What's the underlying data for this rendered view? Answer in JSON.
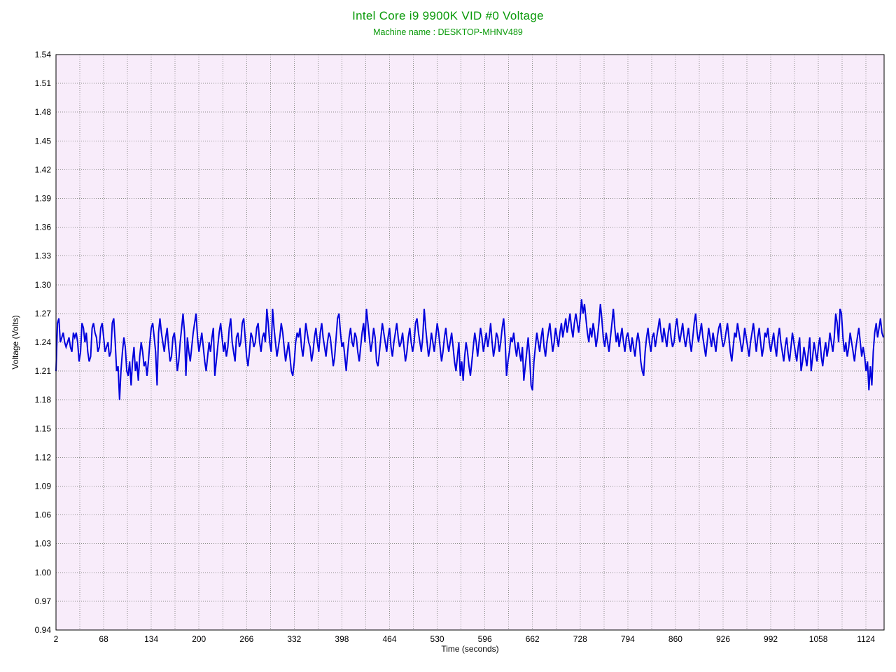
{
  "header": {
    "title": "Intel Core i9 9900K VID #0 Voltage",
    "subtitle": "Machine name : DESKTOP-MHNV489"
  },
  "colors": {
    "title_green": "#0a9a0a",
    "line_blue": "#0000dd",
    "plot_bg": "#f8ecfa",
    "grid": "#8c8c8c",
    "border": "#000000",
    "text": "#000000",
    "page_bg": "#ffffff"
  },
  "chart_data": {
    "type": "line",
    "title": "Intel Core i9 9900K VID #0 Voltage",
    "subtitle": "Machine name : DESKTOP-MHNV489",
    "xlabel": "Time (seconds)",
    "ylabel": "Voltage (Volts)",
    "xlim": [
      2,
      1149
    ],
    "ylim": [
      0.94,
      1.54
    ],
    "grid": "dotted gray; horizontal every 0.03 V, vertical every 33 s",
    "legend": "none",
    "x_ticks": [
      2,
      68,
      134,
      200,
      266,
      332,
      398,
      464,
      530,
      596,
      662,
      728,
      794,
      860,
      926,
      992,
      1058,
      1124
    ],
    "y_ticks": [
      "0.94",
      "0.97",
      "1.00",
      "1.03",
      "1.06",
      "1.09",
      "1.12",
      "1.15",
      "1.18",
      "1.21",
      "1.24",
      "1.27",
      "1.30",
      "1.33",
      "1.36",
      "1.39",
      "1.42",
      "1.45",
      "1.48",
      "1.51",
      "1.54"
    ],
    "x_gridlines": [
      35,
      68,
      101,
      134,
      167,
      200,
      233,
      266,
      299,
      332,
      365,
      398,
      431,
      464,
      497,
      530,
      563,
      596,
      629,
      662,
      695,
      728,
      761,
      794,
      827,
      860,
      893,
      926,
      959,
      992,
      1025,
      1058,
      1091,
      1124
    ],
    "series": [
      {
        "name": "VID #0 Voltage",
        "color": "#0000dd",
        "x_start": 2,
        "x_step": 2,
        "values": [
          1.21,
          1.26,
          1.265,
          1.24,
          1.245,
          1.25,
          1.24,
          1.235,
          1.24,
          1.245,
          1.235,
          1.23,
          1.25,
          1.245,
          1.25,
          1.24,
          1.22,
          1.23,
          1.26,
          1.255,
          1.24,
          1.25,
          1.23,
          1.22,
          1.225,
          1.255,
          1.26,
          1.25,
          1.245,
          1.23,
          1.235,
          1.255,
          1.26,
          1.245,
          1.23,
          1.235,
          1.24,
          1.225,
          1.23,
          1.26,
          1.265,
          1.24,
          1.21,
          1.215,
          1.18,
          1.21,
          1.23,
          1.245,
          1.235,
          1.21,
          1.205,
          1.22,
          1.195,
          1.22,
          1.235,
          1.21,
          1.22,
          1.2,
          1.225,
          1.24,
          1.23,
          1.215,
          1.22,
          1.205,
          1.22,
          1.24,
          1.255,
          1.26,
          1.245,
          1.23,
          1.195,
          1.25,
          1.265,
          1.25,
          1.24,
          1.23,
          1.245,
          1.255,
          1.235,
          1.22,
          1.225,
          1.245,
          1.25,
          1.235,
          1.21,
          1.22,
          1.24,
          1.255,
          1.27,
          1.25,
          1.205,
          1.245,
          1.23,
          1.22,
          1.235,
          1.25,
          1.26,
          1.27,
          1.245,
          1.23,
          1.24,
          1.25,
          1.235,
          1.22,
          1.21,
          1.225,
          1.24,
          1.23,
          1.245,
          1.255,
          1.205,
          1.22,
          1.235,
          1.25,
          1.26,
          1.245,
          1.23,
          1.24,
          1.225,
          1.235,
          1.255,
          1.265,
          1.24,
          1.23,
          1.22,
          1.245,
          1.25,
          1.235,
          1.24,
          1.26,
          1.265,
          1.245,
          1.225,
          1.215,
          1.23,
          1.25,
          1.245,
          1.235,
          1.24,
          1.255,
          1.26,
          1.24,
          1.23,
          1.245,
          1.25,
          1.24,
          1.275,
          1.26,
          1.24,
          1.23,
          1.275,
          1.255,
          1.24,
          1.225,
          1.235,
          1.245,
          1.26,
          1.25,
          1.235,
          1.22,
          1.23,
          1.24,
          1.225,
          1.21,
          1.205,
          1.22,
          1.24,
          1.25,
          1.245,
          1.255,
          1.235,
          1.225,
          1.24,
          1.26,
          1.25,
          1.24,
          1.235,
          1.22,
          1.23,
          1.245,
          1.255,
          1.24,
          1.23,
          1.25,
          1.26,
          1.245,
          1.235,
          1.225,
          1.24,
          1.25,
          1.245,
          1.23,
          1.215,
          1.225,
          1.245,
          1.265,
          1.27,
          1.25,
          1.235,
          1.24,
          1.225,
          1.21,
          1.23,
          1.245,
          1.255,
          1.24,
          1.235,
          1.25,
          1.245,
          1.23,
          1.22,
          1.235,
          1.25,
          1.26,
          1.24,
          1.275,
          1.26,
          1.245,
          1.23,
          1.24,
          1.255,
          1.245,
          1.22,
          1.215,
          1.23,
          1.245,
          1.26,
          1.25,
          1.24,
          1.23,
          1.245,
          1.255,
          1.235,
          1.225,
          1.24,
          1.25,
          1.26,
          1.245,
          1.235,
          1.24,
          1.25,
          1.235,
          1.22,
          1.23,
          1.245,
          1.255,
          1.24,
          1.23,
          1.24,
          1.26,
          1.265,
          1.25,
          1.24,
          1.23,
          1.245,
          1.275,
          1.255,
          1.24,
          1.225,
          1.235,
          1.25,
          1.24,
          1.23,
          1.245,
          1.26,
          1.25,
          1.235,
          1.22,
          1.23,
          1.245,
          1.255,
          1.24,
          1.23,
          1.24,
          1.25,
          1.235,
          1.22,
          1.21,
          1.225,
          1.24,
          1.205,
          1.22,
          1.2,
          1.225,
          1.24,
          1.23,
          1.215,
          1.205,
          1.22,
          1.235,
          1.25,
          1.24,
          1.225,
          1.24,
          1.255,
          1.245,
          1.23,
          1.24,
          1.25,
          1.235,
          1.245,
          1.26,
          1.24,
          1.225,
          1.235,
          1.25,
          1.245,
          1.23,
          1.24,
          1.255,
          1.265,
          1.245,
          1.205,
          1.22,
          1.23,
          1.245,
          1.24,
          1.25,
          1.235,
          1.225,
          1.24,
          1.23,
          1.22,
          1.235,
          1.2,
          1.215,
          1.23,
          1.245,
          1.225,
          1.195,
          1.19,
          1.22,
          1.235,
          1.25,
          1.24,
          1.23,
          1.245,
          1.255,
          1.235,
          1.225,
          1.24,
          1.25,
          1.26,
          1.245,
          1.23,
          1.24,
          1.255,
          1.245,
          1.235,
          1.25,
          1.26,
          1.245,
          1.255,
          1.265,
          1.25,
          1.26,
          1.27,
          1.255,
          1.245,
          1.26,
          1.27,
          1.26,
          1.25,
          1.265,
          1.285,
          1.27,
          1.28,
          1.265,
          1.25,
          1.24,
          1.255,
          1.245,
          1.26,
          1.25,
          1.235,
          1.245,
          1.26,
          1.28,
          1.265,
          1.245,
          1.235,
          1.25,
          1.24,
          1.23,
          1.245,
          1.26,
          1.275,
          1.255,
          1.24,
          1.25,
          1.235,
          1.245,
          1.255,
          1.24,
          1.23,
          1.245,
          1.25,
          1.24,
          1.23,
          1.245,
          1.235,
          1.225,
          1.24,
          1.25,
          1.24,
          1.22,
          1.21,
          1.205,
          1.23,
          1.245,
          1.255,
          1.24,
          1.23,
          1.245,
          1.25,
          1.235,
          1.245,
          1.255,
          1.265,
          1.25,
          1.24,
          1.255,
          1.245,
          1.235,
          1.25,
          1.26,
          1.245,
          1.235,
          1.24,
          1.255,
          1.265,
          1.25,
          1.24,
          1.25,
          1.26,
          1.245,
          1.235,
          1.245,
          1.255,
          1.24,
          1.23,
          1.245,
          1.26,
          1.27,
          1.25,
          1.24,
          1.25,
          1.26,
          1.245,
          1.235,
          1.225,
          1.24,
          1.255,
          1.245,
          1.235,
          1.25,
          1.24,
          1.23,
          1.245,
          1.255,
          1.26,
          1.245,
          1.235,
          1.24,
          1.25,
          1.26,
          1.245,
          1.23,
          1.22,
          1.235,
          1.25,
          1.245,
          1.26,
          1.25,
          1.24,
          1.23,
          1.24,
          1.255,
          1.245,
          1.235,
          1.225,
          1.24,
          1.25,
          1.26,
          1.245,
          1.23,
          1.245,
          1.255,
          1.24,
          1.225,
          1.235,
          1.25,
          1.245,
          1.255,
          1.24,
          1.23,
          1.24,
          1.25,
          1.235,
          1.225,
          1.245,
          1.255,
          1.24,
          1.23,
          1.22,
          1.235,
          1.245,
          1.23,
          1.22,
          1.235,
          1.25,
          1.24,
          1.23,
          1.22,
          1.235,
          1.245,
          1.21,
          1.22,
          1.235,
          1.225,
          1.215,
          1.23,
          1.245,
          1.21,
          1.225,
          1.24,
          1.23,
          1.22,
          1.235,
          1.245,
          1.225,
          1.215,
          1.23,
          1.24,
          1.225,
          1.235,
          1.25,
          1.24,
          1.23,
          1.245,
          1.27,
          1.26,
          1.24,
          1.275,
          1.27,
          1.245,
          1.23,
          1.24,
          1.225,
          1.235,
          1.25,
          1.24,
          1.23,
          1.22,
          1.235,
          1.245,
          1.255,
          1.24,
          1.225,
          1.235,
          1.225,
          1.21,
          1.22,
          1.19,
          1.215,
          1.195,
          1.23,
          1.25,
          1.26,
          1.245,
          1.255,
          1.265,
          1.25,
          1.245
        ]
      }
    ]
  }
}
